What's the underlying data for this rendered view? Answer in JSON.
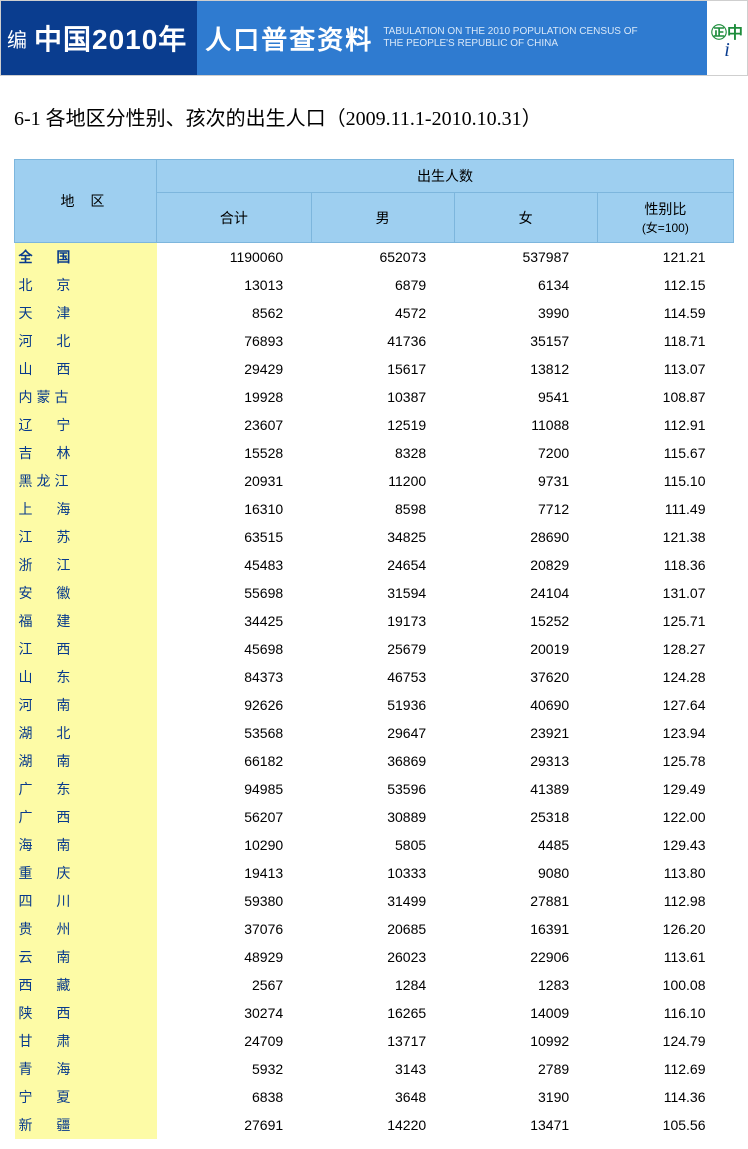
{
  "banner": {
    "edit_label": "编",
    "title_left": "中国2010年",
    "title_cn": "人口普查资料",
    "title_en_line1": "TABULATION ON THE 2010 POPULATION CENSUS OF",
    "title_en_line2": "THE PEOPLE'S REPUBLIC OF CHINA",
    "logo_small_1": "中",
    "logo_small_2": "Ch",
    "logo_i": "i"
  },
  "page_title": "6-1  各地区分性别、孩次的出生人口（2009.11.1-2010.10.31）",
  "table": {
    "group_header": "出生人数",
    "col_region": "地  区",
    "col_total": "合计",
    "col_male": "男",
    "col_female": "女",
    "col_ratio": "性别比",
    "col_ratio_sub": "(女=100)",
    "colors": {
      "header_bg": "#9ecff0",
      "header_border": "#7db6dd",
      "region_bg": "#fdfba6",
      "region_text": "#083a8c"
    },
    "rows": [
      {
        "region": "全  国",
        "total": "1190060",
        "male": "652073",
        "female": "537987",
        "ratio": "121.21",
        "bold": true,
        "tight": false
      },
      {
        "region": "北  京",
        "total": "13013",
        "male": "6879",
        "female": "6134",
        "ratio": "112.15",
        "tight": false
      },
      {
        "region": "天  津",
        "total": "8562",
        "male": "4572",
        "female": "3990",
        "ratio": "114.59",
        "tight": false
      },
      {
        "region": "河  北",
        "total": "76893",
        "male": "41736",
        "female": "35157",
        "ratio": "118.71",
        "tight": false
      },
      {
        "region": "山  西",
        "total": "29429",
        "male": "15617",
        "female": "13812",
        "ratio": "113.07",
        "tight": false
      },
      {
        "region": "内蒙古",
        "total": "19928",
        "male": "10387",
        "female": "9541",
        "ratio": "108.87",
        "tight": true
      },
      {
        "region": "辽  宁",
        "total": "23607",
        "male": "12519",
        "female": "11088",
        "ratio": "112.91",
        "tight": false
      },
      {
        "region": "吉  林",
        "total": "15528",
        "male": "8328",
        "female": "7200",
        "ratio": "115.67",
        "tight": false
      },
      {
        "region": "黑龙江",
        "total": "20931",
        "male": "11200",
        "female": "9731",
        "ratio": "115.10",
        "tight": true
      },
      {
        "region": "上  海",
        "total": "16310",
        "male": "8598",
        "female": "7712",
        "ratio": "111.49",
        "tight": false
      },
      {
        "region": "江  苏",
        "total": "63515",
        "male": "34825",
        "female": "28690",
        "ratio": "121.38",
        "tight": false
      },
      {
        "region": "浙  江",
        "total": "45483",
        "male": "24654",
        "female": "20829",
        "ratio": "118.36",
        "tight": false
      },
      {
        "region": "安  徽",
        "total": "55698",
        "male": "31594",
        "female": "24104",
        "ratio": "131.07",
        "tight": false
      },
      {
        "region": "福  建",
        "total": "34425",
        "male": "19173",
        "female": "15252",
        "ratio": "125.71",
        "tight": false
      },
      {
        "region": "江  西",
        "total": "45698",
        "male": "25679",
        "female": "20019",
        "ratio": "128.27",
        "tight": false
      },
      {
        "region": "山  东",
        "total": "84373",
        "male": "46753",
        "female": "37620",
        "ratio": "124.28",
        "tight": false
      },
      {
        "region": "河  南",
        "total": "92626",
        "male": "51936",
        "female": "40690",
        "ratio": "127.64",
        "tight": false
      },
      {
        "region": "湖  北",
        "total": "53568",
        "male": "29647",
        "female": "23921",
        "ratio": "123.94",
        "tight": false
      },
      {
        "region": "湖  南",
        "total": "66182",
        "male": "36869",
        "female": "29313",
        "ratio": "125.78",
        "tight": false
      },
      {
        "region": "广  东",
        "total": "94985",
        "male": "53596",
        "female": "41389",
        "ratio": "129.49",
        "tight": false
      },
      {
        "region": "广  西",
        "total": "56207",
        "male": "30889",
        "female": "25318",
        "ratio": "122.00",
        "tight": false
      },
      {
        "region": "海  南",
        "total": "10290",
        "male": "5805",
        "female": "4485",
        "ratio": "129.43",
        "tight": false
      },
      {
        "region": "重  庆",
        "total": "19413",
        "male": "10333",
        "female": "9080",
        "ratio": "113.80",
        "tight": false
      },
      {
        "region": "四  川",
        "total": "59380",
        "male": "31499",
        "female": "27881",
        "ratio": "112.98",
        "tight": false
      },
      {
        "region": "贵  州",
        "total": "37076",
        "male": "20685",
        "female": "16391",
        "ratio": "126.20",
        "tight": false
      },
      {
        "region": "云  南",
        "total": "48929",
        "male": "26023",
        "female": "22906",
        "ratio": "113.61",
        "tight": false
      },
      {
        "region": "西  藏",
        "total": "2567",
        "male": "1284",
        "female": "1283",
        "ratio": "100.08",
        "tight": false
      },
      {
        "region": "陕  西",
        "total": "30274",
        "male": "16265",
        "female": "14009",
        "ratio": "116.10",
        "tight": false
      },
      {
        "region": "甘  肃",
        "total": "24709",
        "male": "13717",
        "female": "10992",
        "ratio": "124.79",
        "tight": false
      },
      {
        "region": "青  海",
        "total": "5932",
        "male": "3143",
        "female": "2789",
        "ratio": "112.69",
        "tight": false
      },
      {
        "region": "宁  夏",
        "total": "6838",
        "male": "3648",
        "female": "3190",
        "ratio": "114.36",
        "tight": false
      },
      {
        "region": "新  疆",
        "total": "27691",
        "male": "14220",
        "female": "13471",
        "ratio": "105.56",
        "tight": false
      }
    ]
  }
}
